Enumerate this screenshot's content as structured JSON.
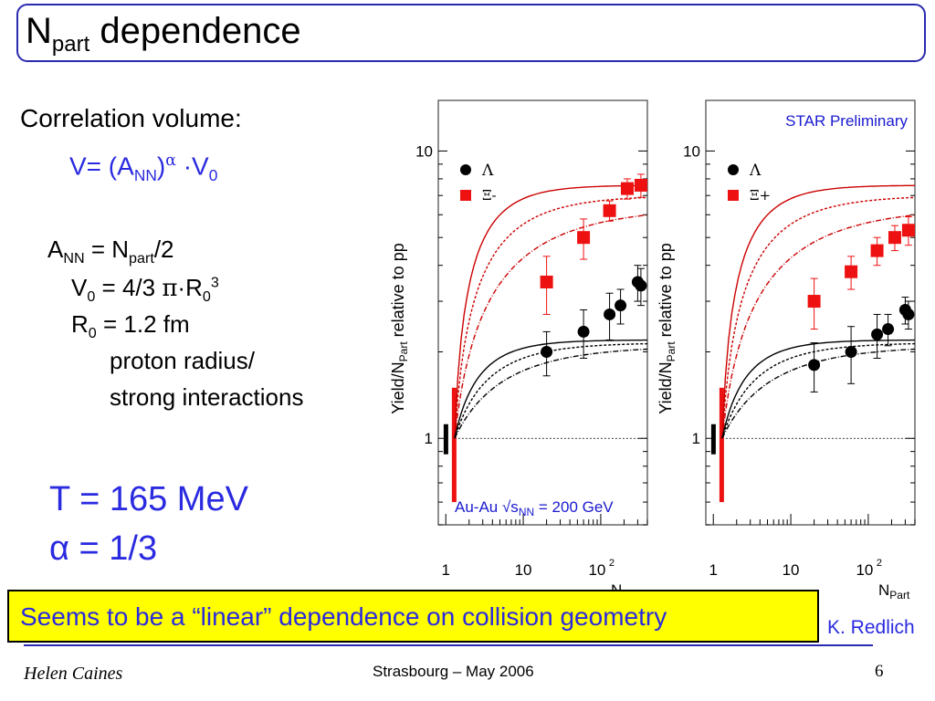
{
  "slide": {
    "title_main": "N",
    "title_sub": "part",
    "title_rest": " dependence",
    "correlation_label": "Correlation volume:",
    "formula_v": "V= (A",
    "formula_v_sub": "NN",
    "formula_v_close": ")",
    "formula_alpha": "α",
    "formula_v0": " ·V",
    "formula_v0_sub": "0",
    "ann_label": "A",
    "ann_sub": "NN",
    "ann_rest": " = N",
    "ann_part_sub": "part",
    "ann_div": "/2",
    "v0_label": "V",
    "v0_sub": "0",
    "v0_rest": " = 4/3 ",
    "v0_pi": "π",
    "v0_dot_r": "·R",
    "v0_r_sub": "0",
    "v0_r_sup": "3",
    "r0_label": "R",
    "r0_sub": "0",
    "r0_rest": " = 1.2 fm",
    "radius_line1": "proton radius/",
    "radius_line2": "strong interactions",
    "temperature": "T = 165 MeV",
    "alpha_value": "α = 1/3",
    "banner": "Seems to be a “linear” dependence on collision geometry",
    "credit": "K. Redlich",
    "author": "Helen Caines",
    "venue": "Strasbourg  –  May 2006",
    "page": "6"
  },
  "chart_data": [
    {
      "type": "scatter",
      "title": "",
      "xlabel": "N",
      "xlabel_sub": "Part",
      "ylabel": "Yield/N",
      "ylabel_sub": "Part",
      "ylabel_rest": " relative to pp",
      "x_scale": "log",
      "y_scale": "log",
      "xlim": [
        0.8,
        400
      ],
      "ylim": [
        0.5,
        15
      ],
      "x_tick_labels": [
        "1",
        "10",
        "10",
        "2"
      ],
      "y_tick_labels": [
        "1",
        "10"
      ],
      "annotation": "Au-Au √s",
      "annotation_sub": "NN",
      "annotation_rest": " = 200 GeV",
      "series": [
        {
          "name": "Λ",
          "color": "#000000",
          "marker": "circle",
          "x": [
            20,
            60,
            130,
            180,
            300,
            330
          ],
          "y": [
            2.0,
            2.35,
            2.7,
            2.9,
            3.5,
            3.4
          ],
          "err": [
            0.35,
            0.45,
            0.5,
            0.4,
            0.5,
            0.5
          ]
        },
        {
          "name": "Ξ-",
          "color": "#ee1111",
          "marker": "square",
          "x": [
            20,
            60,
            130,
            220,
            330
          ],
          "y": [
            3.5,
            5.0,
            6.2,
            7.4,
            7.6
          ],
          "err": [
            0.8,
            0.8,
            0.5,
            0.6,
            0.7
          ]
        }
      ]
    },
    {
      "type": "scatter",
      "title": "STAR Preliminary",
      "xlabel": "N",
      "xlabel_sub": "Part",
      "ylabel": "Yield/N",
      "ylabel_sub": "Part",
      "ylabel_rest": " relative to pp",
      "x_scale": "log",
      "y_scale": "log",
      "xlim": [
        0.8,
        400
      ],
      "ylim": [
        0.5,
        15
      ],
      "x_tick_labels": [
        "1",
        "10",
        "10",
        "2"
      ],
      "y_tick_labels": [
        "1",
        "10"
      ],
      "series": [
        {
          "name": "Λ",
          "color": "#000000",
          "marker": "circle",
          "x": [
            20,
            60,
            130,
            180,
            300,
            330
          ],
          "y": [
            1.8,
            2.0,
            2.3,
            2.4,
            2.8,
            2.7
          ],
          "err": [
            0.35,
            0.45,
            0.4,
            0.3,
            0.3,
            0.3
          ]
        },
        {
          "name": "Ξ+",
          "color": "#ee1111",
          "marker": "square",
          "x": [
            20,
            60,
            130,
            220,
            330
          ],
          "y": [
            3.0,
            3.8,
            4.5,
            5.0,
            5.3
          ],
          "err": [
            0.6,
            0.5,
            0.5,
            0.5,
            0.6
          ]
        }
      ]
    }
  ]
}
